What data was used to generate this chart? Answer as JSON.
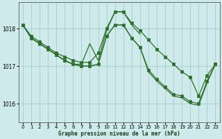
{
  "title": "Graphe pression niveau de la mer (hPa)",
  "bg_color": "#ceeaea",
  "grid_color": "#aacccc",
  "line_color": "#2d6e2d",
  "xlim": [
    -0.5,
    23.5
  ],
  "ylim": [
    1015.5,
    1018.7
  ],
  "yticks": [
    1016,
    1017,
    1018
  ],
  "xticks": [
    0,
    1,
    2,
    3,
    4,
    5,
    6,
    7,
    8,
    9,
    10,
    11,
    12,
    13,
    14,
    15,
    16,
    17,
    18,
    19,
    20,
    21,
    22,
    23
  ],
  "series": [
    {
      "x": [
        0,
        1,
        2,
        3,
        4,
        5,
        6,
        7,
        8,
        9,
        10,
        11,
        12,
        13,
        14,
        15,
        16,
        17,
        18,
        19,
        20,
        21,
        22,
        23
      ],
      "y": [
        1018.1,
        1017.8,
        1017.65,
        1017.5,
        1017.35,
        1017.25,
        1017.15,
        1017.1,
        1017.1,
        1017.35,
        1018.0,
        1018.45,
        1018.45,
        1018.15,
        1017.95,
        1017.7,
        1017.45,
        1017.25,
        1017.05,
        1016.85,
        1016.7,
        1016.2,
        1016.75,
        1017.05
      ],
      "has_markers": true
    },
    {
      "x": [
        0,
        1,
        2,
        3,
        4,
        5,
        6,
        7,
        8,
        9,
        10,
        11,
        12,
        13,
        14
      ],
      "y": [
        1018.1,
        1017.75,
        1017.6,
        1017.45,
        1017.3,
        1017.15,
        1017.05,
        1017.05,
        1017.6,
        1017.15,
        1017.95,
        1018.45,
        1018.45,
        1018.1,
        1017.85
      ],
      "has_markers": false
    },
    {
      "x": [
        0,
        1,
        2,
        3,
        4,
        5,
        6,
        7,
        8,
        9,
        10,
        11,
        12,
        13,
        14,
        15,
        16,
        17,
        18,
        19,
        20,
        21,
        22,
        23
      ],
      "y": [
        1018.1,
        1017.75,
        1017.6,
        1017.45,
        1017.3,
        1017.15,
        1017.05,
        1017.0,
        1017.0,
        1017.05,
        1017.8,
        1018.1,
        1018.1,
        1017.75,
        1017.5,
        1016.9,
        1016.65,
        1016.45,
        1016.25,
        1016.2,
        1016.05,
        1016.0,
        1016.6,
        1017.05
      ],
      "has_markers": true
    },
    {
      "x": [
        0,
        1,
        2,
        3,
        4,
        5,
        6,
        7,
        8,
        9,
        10,
        11,
        12,
        13,
        14,
        15,
        16,
        17,
        18,
        19,
        20,
        21,
        22,
        23
      ],
      "y": [
        1018.1,
        1017.75,
        1017.6,
        1017.45,
        1017.3,
        1017.15,
        1017.05,
        1017.0,
        1017.0,
        1017.05,
        1017.8,
        1018.1,
        1018.1,
        1017.75,
        1017.5,
        1016.85,
        1016.6,
        1016.4,
        1016.2,
        1016.15,
        1016.0,
        1015.95,
        1016.55,
        1017.05
      ],
      "has_markers": false
    }
  ]
}
